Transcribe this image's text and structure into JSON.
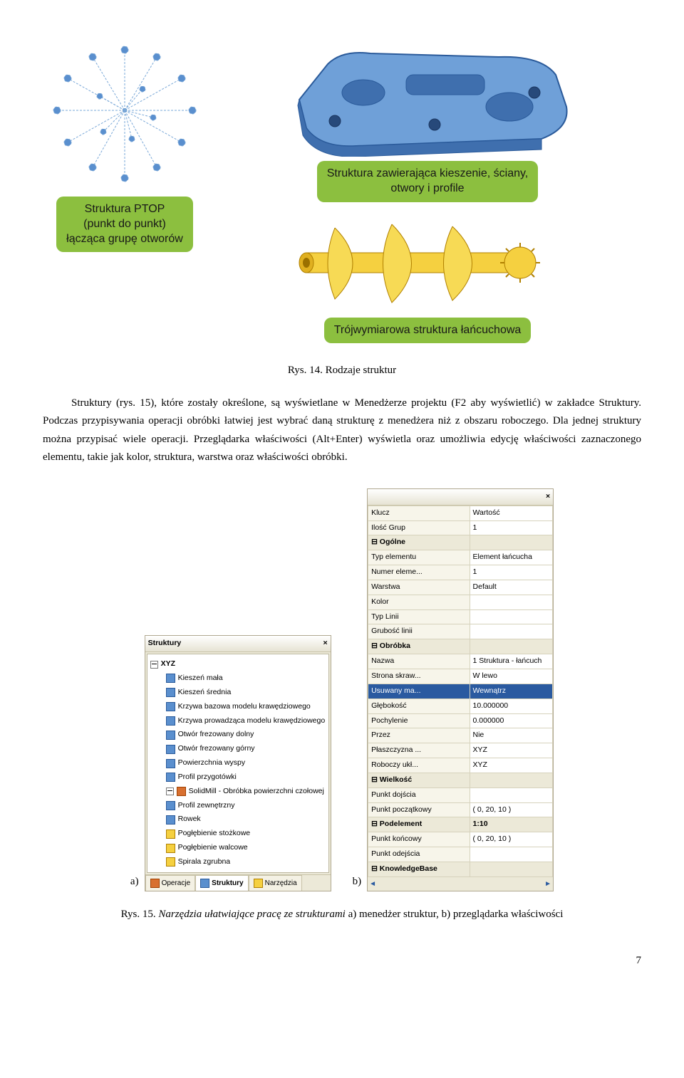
{
  "figure_top": {
    "callout_left_title": "Struktura PTOP",
    "callout_left_l2": "(punkt do punkt)",
    "callout_left_l3": "łącząca grupę otworów",
    "callout_right_l1": "Struktura zawierająca kieszenie, ściany,",
    "callout_right_l2": "otwory i profile",
    "callout_bottom": "Trójwymiarowa struktura łańcuchowa",
    "caption": "Rys. 14. Rodzaje struktur",
    "colors": {
      "callout_bg": "#8cbf3f",
      "blue_part": "#5a8fce",
      "blue_edge": "#2a5a9a",
      "yellow_part": "#f5d040",
      "yellow_edge": "#b08000",
      "wire": "#7aa8d8"
    }
  },
  "body": {
    "p1": "Struktury (rys. 15), które zostały określone, są wyświetlane w Menedżerze projektu (F2 aby wyświetlić) w zakładce Struktury. Podczas przypisywania operacji obróbki łatwiej jest wybrać daną strukturę z menedżera niż z obszaru roboczego. Dla jednej struktury można przypisać wiele operacji. Przeglądarka właściwości (Alt+Enter) wyświetla oraz umożliwia edycję właściwości zaznaczonego elementu, takie jak kolor, struktura, warstwa oraz właściwości obróbki."
  },
  "panel_a": {
    "title": "Struktury",
    "root": "XYZ",
    "items": [
      "Kieszeń mała",
      "Kieszeń średnia",
      "Krzywa bazowa modelu krawędziowego",
      "Krzywa prowadząca modelu krawędziowego",
      "Otwór frezowany dolny",
      "Otwór frezowany górny",
      "Powierzchnia wyspy",
      "Profil przygotówki"
    ],
    "solidmill": "SolidMill - Obróbka powierzchni czołowej",
    "items2": [
      "Profil zewnętrzny",
      "Rowek"
    ],
    "n_items": [
      "Pogłębienie stożkowe",
      "Pogłębienie walcowe",
      "Spirala zgrubna"
    ],
    "tabs": [
      "Operacje",
      "Struktury",
      "Narzędzia"
    ],
    "label": "a)"
  },
  "panel_b": {
    "header_k": "Klucz",
    "header_v": "Wartość",
    "rows": [
      {
        "k": "Ilość Grup",
        "v": "1",
        "section": false
      },
      {
        "k": "Ogólne",
        "v": "",
        "section": true
      },
      {
        "k": "Typ elementu",
        "v": "Element łańcucha"
      },
      {
        "k": "Numer eleme...",
        "v": "1"
      },
      {
        "k": "Warstwa",
        "v": "Default"
      },
      {
        "k": "Kolor",
        "v": ""
      },
      {
        "k": "Typ Linii",
        "v": ""
      },
      {
        "k": "Grubość linii",
        "v": ""
      },
      {
        "k": "Obróbka",
        "v": "",
        "section": true
      },
      {
        "k": "Nazwa",
        "v": "1 Struktura - łańcuch"
      },
      {
        "k": "Strona skraw...",
        "v": "W lewo"
      },
      {
        "k": "Usuwany ma...",
        "v": "Wewnątrz",
        "highlight": true
      },
      {
        "k": "Głębokość",
        "v": "10.000000"
      },
      {
        "k": "Pochylenie",
        "v": "0.000000"
      },
      {
        "k": "Przez",
        "v": "Nie"
      },
      {
        "k": "Płaszczyzna ...",
        "v": "XYZ"
      },
      {
        "k": "Roboczy ukł...",
        "v": "XYZ"
      },
      {
        "k": "Wielkość",
        "v": "",
        "section": true
      },
      {
        "k": "Punkt dojścia",
        "v": ""
      },
      {
        "k": "Punkt początkowy",
        "v": "( 0, 20, 10 )"
      },
      {
        "k": "Podelement",
        "v": "1:10",
        "section": true
      },
      {
        "k": "Punkt końcowy",
        "v": "( 0, 20, 10 )"
      },
      {
        "k": "Punkt odejścia",
        "v": ""
      },
      {
        "k": "KnowledgeBase",
        "v": "",
        "section": true
      }
    ],
    "label": "b)"
  },
  "caption15": {
    "prefix": "Rys. 15. ",
    "italic": "Narzędzia ułatwiające pracę ze strukturami",
    "suffix": " a) menedżer struktur, b) przeglądarka właściwości"
  },
  "page_number": "7"
}
